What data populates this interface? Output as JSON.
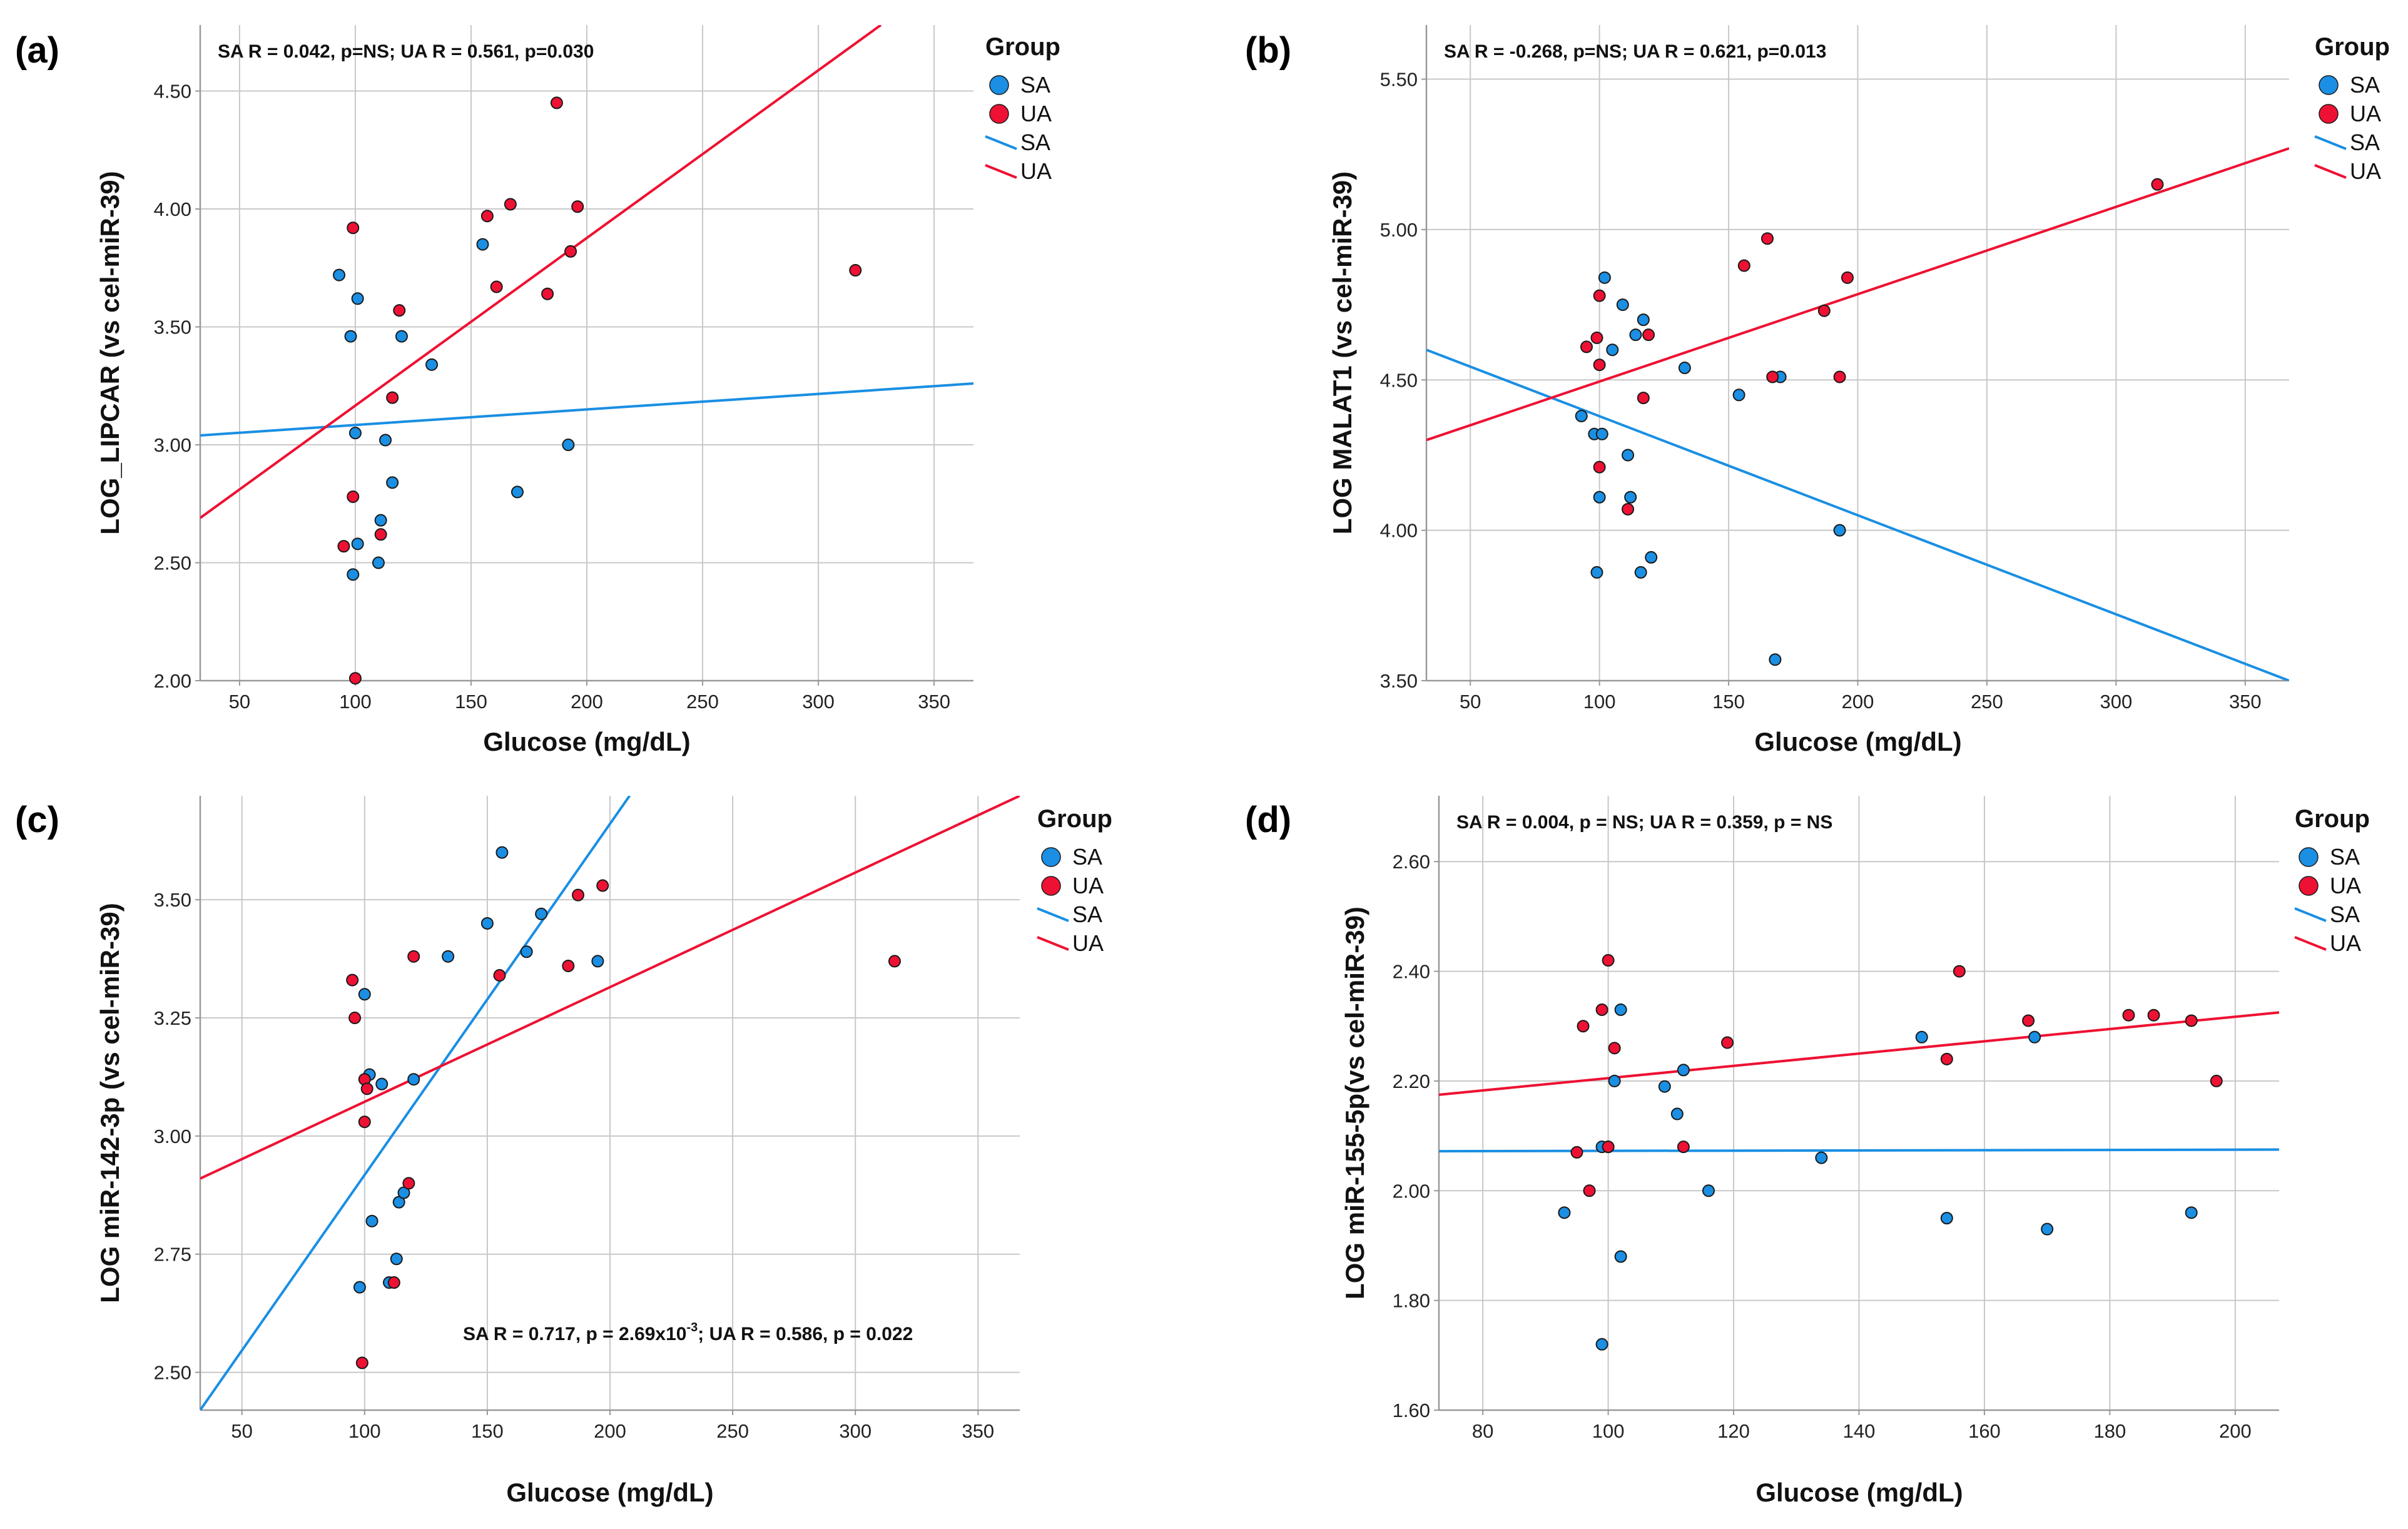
{
  "colors": {
    "SA": "#1a8fe3",
    "UA": "#ee1133",
    "grid": "#c8c8c8",
    "axis": "#999999"
  },
  "chart_data": [
    {
      "id": "a",
      "type": "scatter",
      "panel_label": "(a)",
      "title": "",
      "xlabel": "Glucose (mg/dL)",
      "ylabel": "LOG_LIPCAR (vs cel-miR-39)",
      "xlim": [
        33,
        367
      ],
      "ylim": [
        2.0,
        4.78
      ],
      "xticks": [
        50,
        100,
        150,
        200,
        250,
        300,
        350
      ],
      "xtick_labels": [
        "50",
        "100",
        "150",
        "200",
        "250",
        "300",
        "350"
      ],
      "yticks": [
        2.0,
        2.5,
        3.0,
        3.5,
        4.0,
        4.5
      ],
      "ytick_labels": [
        "2.00",
        "2.50",
        "3.00",
        "3.50",
        "4.00",
        "4.50"
      ],
      "annotation": "SA R = 0.042, p=NS; UA R = 0.561, p=0.030",
      "annotation_place": "top-left",
      "legend": {
        "title": "Group",
        "entries": [
          "SA",
          "UA",
          "SA",
          "UA"
        ]
      },
      "series": [
        {
          "name": "SA",
          "points": [
            [
              93,
              3.72
            ],
            [
              98,
              3.46
            ],
            [
              100,
              3.05
            ],
            [
              101,
              3.62
            ],
            [
              101,
              2.58
            ],
            [
              99,
              2.45
            ],
            [
              110,
              2.5
            ],
            [
              111,
              2.68
            ],
            [
              113,
              3.02
            ],
            [
              116,
              2.84
            ],
            [
              120,
              3.46
            ],
            [
              133,
              3.34
            ],
            [
              155,
              3.85
            ],
            [
              170,
              2.8
            ],
            [
              192,
              3.0
            ]
          ]
        },
        {
          "name": "UA",
          "points": [
            [
              95,
              2.57
            ],
            [
              99,
              3.92
            ],
            [
              99,
              2.78
            ],
            [
              100,
              2.01
            ],
            [
              111,
              2.62
            ],
            [
              116,
              3.2
            ],
            [
              119,
              3.57
            ],
            [
              157,
              3.97
            ],
            [
              161,
              3.67
            ],
            [
              167,
              4.02
            ],
            [
              183,
              3.64
            ],
            [
              187,
              4.45
            ],
            [
              193,
              3.82
            ],
            [
              196,
              4.01
            ],
            [
              316,
              3.74
            ]
          ]
        }
      ],
      "fit_lines": [
        {
          "name": "SA",
          "x": [
            33,
            367
          ],
          "y": [
            3.04,
            3.26
          ]
        },
        {
          "name": "UA",
          "x": [
            33,
            327
          ],
          "y": [
            2.69,
            4.78
          ]
        }
      ]
    },
    {
      "id": "b",
      "type": "scatter",
      "panel_label": "(b)",
      "title": "",
      "xlabel": "Glucose (mg/dL)",
      "ylabel": "LOG MALAT1 (vs cel-miR-39)",
      "xlim": [
        33,
        367
      ],
      "ylim": [
        3.5,
        5.68
      ],
      "xticks": [
        50,
        100,
        150,
        200,
        250,
        300,
        350
      ],
      "xtick_labels": [
        "50",
        "100",
        "150",
        "200",
        "250",
        "300",
        "350"
      ],
      "yticks": [
        3.5,
        4.0,
        4.5,
        5.0,
        5.5
      ],
      "ytick_labels": [
        "3.50",
        "4.00",
        "4.50",
        "5.00",
        "5.50"
      ],
      "annotation": "SA R = -0.268, p=NS; UA R = 0.621, p=0.013",
      "annotation_place": "top-left",
      "legend": {
        "title": "Group",
        "entries": [
          "SA",
          "UA",
          "SA",
          "UA"
        ]
      },
      "series": [
        {
          "name": "SA",
          "points": [
            [
              93,
              4.38
            ],
            [
              98,
              4.32
            ],
            [
              99,
              3.86
            ],
            [
              100,
              4.11
            ],
            [
              101,
              4.32
            ],
            [
              102,
              4.84
            ],
            [
              105,
              4.6
            ],
            [
              109,
              4.75
            ],
            [
              111,
              4.25
            ],
            [
              112,
              4.11
            ],
            [
              114,
              4.65
            ],
            [
              116,
              3.86
            ],
            [
              117,
              4.7
            ],
            [
              120,
              3.91
            ],
            [
              133,
              4.54
            ],
            [
              154,
              4.45
            ],
            [
              168,
              3.57
            ],
            [
              170,
              4.51
            ],
            [
              193,
              4.0
            ]
          ]
        },
        {
          "name": "UA",
          "points": [
            [
              95,
              4.61
            ],
            [
              99,
              4.64
            ],
            [
              100,
              4.78
            ],
            [
              100,
              4.55
            ],
            [
              100,
              4.21
            ],
            [
              111,
              4.07
            ],
            [
              117,
              4.44
            ],
            [
              119,
              4.65
            ],
            [
              156,
              4.88
            ],
            [
              165,
              4.97
            ],
            [
              167,
              4.51
            ],
            [
              187,
              4.73
            ],
            [
              193,
              4.51
            ],
            [
              196,
              4.84
            ],
            [
              316,
              5.15
            ]
          ]
        }
      ],
      "fit_lines": [
        {
          "name": "SA",
          "x": [
            33,
            367
          ],
          "y": [
            4.6,
            3.5
          ]
        },
        {
          "name": "UA",
          "x": [
            33,
            367
          ],
          "y": [
            4.3,
            5.27
          ]
        }
      ]
    },
    {
      "id": "c",
      "type": "scatter",
      "panel_label": "(c)",
      "title": "",
      "xlabel": "Glucose (mg/dL)",
      "ylabel": "LOG miR-142-3p (vs cel-miR-39)",
      "xlim": [
        33,
        367
      ],
      "ylim": [
        2.42,
        3.72
      ],
      "xticks": [
        50,
        100,
        150,
        200,
        250,
        300,
        350
      ],
      "xtick_labels": [
        "50",
        "100",
        "150",
        "200",
        "250",
        "300",
        "350"
      ],
      "yticks": [
        2.5,
        2.75,
        3.0,
        3.25,
        3.5
      ],
      "ytick_labels": [
        "2.50",
        "2.75",
        "3.00",
        "3.25",
        "3.50"
      ],
      "annotation": "SA R = 0.717, p = 2.69x10",
      "annotation_sup": "-3",
      "annotation_rest": "; UA R = 0.586, p = 0.022",
      "annotation_place": "bottom-right",
      "legend": {
        "title": "Group",
        "entries": [
          "SA",
          "UA",
          "SA",
          "UA"
        ]
      },
      "series": [
        {
          "name": "SA",
          "points": [
            [
              98,
              2.68
            ],
            [
              100,
              3.3
            ],
            [
              102,
              3.13
            ],
            [
              103,
              2.82
            ],
            [
              107,
              3.11
            ],
            [
              110,
              2.69
            ],
            [
              113,
              2.74
            ],
            [
              114,
              2.86
            ],
            [
              116,
              2.88
            ],
            [
              120,
              3.12
            ],
            [
              134,
              3.38
            ],
            [
              150,
              3.45
            ],
            [
              156,
              3.6
            ],
            [
              166,
              3.39
            ],
            [
              172,
              3.47
            ],
            [
              195,
              3.37
            ]
          ]
        },
        {
          "name": "UA",
          "points": [
            [
              95,
              3.33
            ],
            [
              96,
              3.25
            ],
            [
              100,
              3.12
            ],
            [
              100,
              3.03
            ],
            [
              101,
              3.1
            ],
            [
              99,
              2.52
            ],
            [
              112,
              2.69
            ],
            [
              118,
              2.9
            ],
            [
              120,
              3.38
            ],
            [
              155,
              3.34
            ],
            [
              183,
              3.36
            ],
            [
              187,
              3.51
            ],
            [
              197,
              3.53
            ],
            [
              316,
              3.37
            ]
          ]
        }
      ],
      "fit_lines": [
        {
          "name": "SA",
          "x": [
            33,
            208
          ],
          "y": [
            2.42,
            3.72
          ]
        },
        {
          "name": "UA",
          "x": [
            33,
            367
          ],
          "y": [
            2.91,
            3.72
          ]
        }
      ]
    },
    {
      "id": "d",
      "type": "scatter",
      "panel_label": "(d)",
      "title": "",
      "xlabel": "Glucose (mg/dL)",
      "ylabel": "LOG miR-155-5p(vs cel-miR-39)",
      "xlim": [
        73,
        207
      ],
      "ylim": [
        1.6,
        2.72
      ],
      "xticks": [
        80,
        100,
        120,
        140,
        160,
        180,
        200
      ],
      "xtick_labels": [
        "80",
        "100",
        "120",
        "140",
        "160",
        "180",
        "200"
      ],
      "yticks": [
        1.6,
        1.8,
        2.0,
        2.2,
        2.4,
        2.6
      ],
      "ytick_labels": [
        "1.60",
        "1.80",
        "2.00",
        "2.20",
        "2.40",
        "2.60"
      ],
      "annotation": "SA R = 0.004, p = NS; UA R = 0.359, p = NS",
      "annotation_place": "top-left",
      "legend": {
        "title": "Group",
        "entries": [
          "SA",
          "UA",
          "SA",
          "UA"
        ]
      },
      "series": [
        {
          "name": "SA",
          "points": [
            [
              93,
              1.96
            ],
            [
              99,
              1.72
            ],
            [
              99,
              2.08
            ],
            [
              100,
              2.08
            ],
            [
              101,
              2.2
            ],
            [
              102,
              2.33
            ],
            [
              102,
              1.88
            ],
            [
              109,
              2.19
            ],
            [
              111,
              2.14
            ],
            [
              112,
              2.22
            ],
            [
              116,
              2.0
            ],
            [
              134,
              2.06
            ],
            [
              150,
              2.28
            ],
            [
              154,
              1.95
            ],
            [
              168,
              2.28
            ],
            [
              170,
              1.93
            ],
            [
              193,
              1.96
            ]
          ]
        },
        {
          "name": "UA",
          "points": [
            [
              95,
              2.07
            ],
            [
              96,
              2.3
            ],
            [
              97,
              2.0
            ],
            [
              99,
              2.33
            ],
            [
              100,
              2.42
            ],
            [
              100,
              2.08
            ],
            [
              101,
              2.26
            ],
            [
              112,
              2.08
            ],
            [
              119,
              2.27
            ],
            [
              154,
              2.24
            ],
            [
              156,
              2.4
            ],
            [
              167,
              2.31
            ],
            [
              183,
              2.32
            ],
            [
              187,
              2.32
            ],
            [
              193,
              2.31
            ],
            [
              197,
              2.2
            ]
          ]
        }
      ],
      "fit_lines": [
        {
          "name": "SA",
          "x": [
            73,
            207
          ],
          "y": [
            2.072,
            2.075
          ]
        },
        {
          "name": "UA",
          "x": [
            73,
            207
          ],
          "y": [
            2.175,
            2.325
          ]
        }
      ]
    }
  ]
}
